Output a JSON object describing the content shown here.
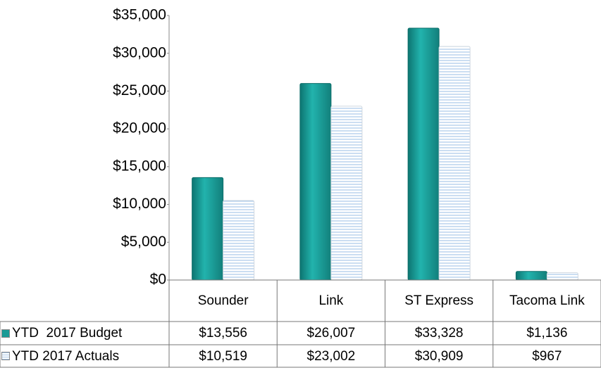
{
  "chart_data": {
    "type": "bar",
    "categories": [
      "Sounder",
      "Link",
      "ST Express",
      "Tacoma Link"
    ],
    "series": [
      {
        "name": "YTD  2017 Budget",
        "color": "#1a9b96",
        "values": [
          13556,
          26007,
          33328,
          1136
        ],
        "value_labels": [
          "$13,556",
          "$26,007",
          "$33,328",
          "$1,136"
        ]
      },
      {
        "name": "YTD 2017 Actuals",
        "color": "#a9c8ea",
        "values": [
          10519,
          23002,
          30909,
          967
        ],
        "value_labels": [
          "$10,519",
          "$23,002",
          "$30,909",
          "$967"
        ]
      }
    ],
    "ylim": [
      0,
      35000
    ],
    "yticks": [
      {
        "value": 0,
        "label": "$0"
      },
      {
        "value": 5000,
        "label": "$5,000"
      },
      {
        "value": 10000,
        "label": "$10,000"
      },
      {
        "value": 15000,
        "label": "$15,000"
      },
      {
        "value": 20000,
        "label": "$20,000"
      },
      {
        "value": 25000,
        "label": "$25,000"
      },
      {
        "value": 30000,
        "label": "$30,000"
      },
      {
        "value": 35000,
        "label": "$35,000"
      }
    ],
    "legend": "table"
  }
}
